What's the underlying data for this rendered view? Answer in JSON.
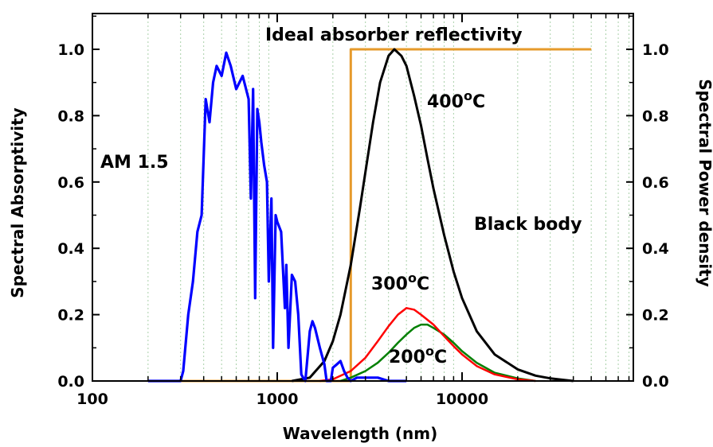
{
  "chart_data": {
    "type": "line",
    "title": "",
    "xlabel": "Wavelength (nm)",
    "ylabel_left": "Spectral Absorptivity",
    "ylabel_right": "Spectral Power density",
    "xscale": "log",
    "xlim": [
      100,
      70000
    ],
    "ylim": [
      0,
      1.1
    ],
    "grid": "vertical dotted minor gridlines",
    "x_ticks": [
      100,
      1000,
      10000
    ],
    "x_tick_labels": [
      "100",
      "1000",
      "10000"
    ],
    "y_ticks": [
      0.0,
      0.2,
      0.4,
      0.6,
      0.8,
      1.0
    ],
    "y_tick_labels": [
      "0.0",
      "0.2",
      "0.4",
      "0.6",
      "0.8",
      "1.0"
    ],
    "annotations": {
      "ideal": "Ideal absorber reflectivity",
      "am15": "AM 1.5",
      "blackbody": "Black body",
      "t400": "400",
      "t300": "300",
      "t200": "200",
      "deg_sup": "o",
      "unit_c": "C"
    },
    "series": [
      {
        "key": "am15",
        "color": "#0000ff",
        "x": [
          200,
          300,
          310,
          330,
          350,
          370,
          390,
          410,
          430,
          450,
          470,
          500,
          530,
          560,
          600,
          650,
          700,
          720,
          740,
          760,
          780,
          800,
          820,
          850,
          880,
          900,
          930,
          950,
          980,
          1000,
          1050,
          1100,
          1120,
          1150,
          1200,
          1250,
          1300,
          1350,
          1380,
          1420,
          1500,
          1550,
          1600,
          1700,
          1800,
          1850,
          1950,
          2000,
          2100,
          2200,
          2300,
          2400,
          2500,
          2700,
          3000,
          3500,
          4000,
          4500,
          5000
        ],
        "values": [
          0.0,
          0.0,
          0.03,
          0.2,
          0.3,
          0.45,
          0.5,
          0.85,
          0.78,
          0.9,
          0.95,
          0.92,
          0.99,
          0.95,
          0.88,
          0.92,
          0.85,
          0.55,
          0.88,
          0.25,
          0.82,
          0.78,
          0.72,
          0.65,
          0.6,
          0.3,
          0.55,
          0.1,
          0.5,
          0.48,
          0.45,
          0.22,
          0.35,
          0.1,
          0.32,
          0.3,
          0.2,
          0.02,
          0.01,
          0.0,
          0.15,
          0.18,
          0.16,
          0.1,
          0.05,
          0.0,
          0.0,
          0.04,
          0.05,
          0.06,
          0.03,
          0.01,
          0.0,
          0.01,
          0.01,
          0.01,
          0.0,
          0.0,
          0.0
        ]
      },
      {
        "key": "ideal",
        "color": "#e69a2b",
        "x": [
          200,
          2500,
          2500,
          50000
        ],
        "values": [
          0.0,
          0.0,
          1.0,
          1.0
        ]
      },
      {
        "key": "bb400",
        "color": "#000000",
        "x": [
          1200,
          1500,
          1800,
          2000,
          2200,
          2500,
          2800,
          3000,
          3300,
          3600,
          4000,
          4300,
          4700,
          5000,
          5500,
          6000,
          6500,
          7000,
          8000,
          9000,
          10000,
          12000,
          15000,
          20000,
          25000,
          30000,
          40000
        ],
        "values": [
          0.0,
          0.01,
          0.06,
          0.12,
          0.2,
          0.35,
          0.52,
          0.63,
          0.78,
          0.9,
          0.98,
          1.0,
          0.98,
          0.95,
          0.86,
          0.77,
          0.67,
          0.58,
          0.44,
          0.33,
          0.25,
          0.15,
          0.08,
          0.035,
          0.016,
          0.008,
          0.0
        ]
      },
      {
        "key": "bb300",
        "color": "#ff0000",
        "x": [
          1700,
          2000,
          2500,
          3000,
          3500,
          4000,
          4500,
          5000,
          5500,
          6000,
          7000,
          8000,
          9000,
          10000,
          12000,
          15000,
          20000,
          25000
        ],
        "values": [
          0.0,
          0.005,
          0.03,
          0.07,
          0.12,
          0.165,
          0.2,
          0.22,
          0.215,
          0.2,
          0.17,
          0.135,
          0.105,
          0.08,
          0.045,
          0.02,
          0.005,
          0.0
        ]
      },
      {
        "key": "bb200",
        "color": "#008000",
        "x": [
          2200,
          2500,
          3000,
          3500,
          4000,
          4500,
          5000,
          5500,
          6000,
          6500,
          7000,
          8000,
          9000,
          10000,
          12000,
          15000,
          20000,
          25000
        ],
        "values": [
          0.0,
          0.01,
          0.03,
          0.055,
          0.085,
          0.115,
          0.14,
          0.16,
          0.17,
          0.17,
          0.16,
          0.14,
          0.115,
          0.09,
          0.055,
          0.025,
          0.008,
          0.0
        ]
      }
    ]
  }
}
